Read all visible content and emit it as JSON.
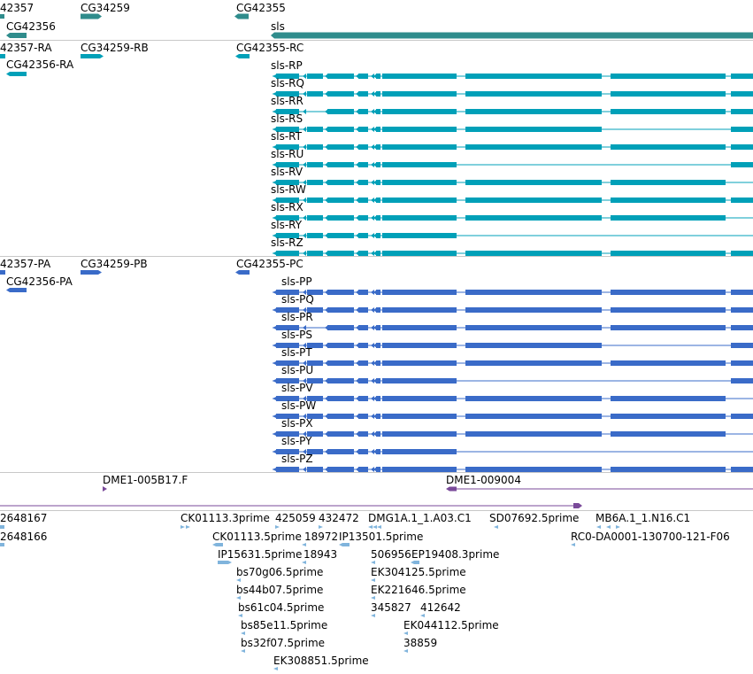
{
  "colors": {
    "gene": "#2f8c8c",
    "mrna": "#00a0b8",
    "cds": "#3a6bc8",
    "cdna": "#7a4a9a",
    "est": "#80b4dc",
    "separator": "#c8c8c8"
  },
  "genes": {
    "row1": [
      "42357",
      "CG34259",
      "CG42355"
    ],
    "row2": [
      "CG42356",
      "sls"
    ]
  },
  "mrna": {
    "row1": [
      "42357-RA",
      "CG34259-RB",
      "CG42355-RC"
    ],
    "row2": [
      "CG42356-RA"
    ],
    "sls": [
      "sls-RP",
      "sls-RQ",
      "sls-RR",
      "sls-RS",
      "sls-RT",
      "sls-RU",
      "sls-RV",
      "sls-RW",
      "sls-RX",
      "sls-RY",
      "sls-RZ"
    ]
  },
  "cds": {
    "row1": [
      "42357-PA",
      "CG34259-PB",
      "CG42355-PC"
    ],
    "row2": [
      "CG42356-PA"
    ],
    "sls": [
      "sls-PP",
      "sls-PQ",
      "sls-PR",
      "sls-PS",
      "sls-PT",
      "sls-PU",
      "sls-PV",
      "sls-PW",
      "sls-PX",
      "sls-PY",
      "sls-PZ"
    ]
  },
  "cdna": [
    "DME1-005B17.F",
    "DME1-009004"
  ],
  "est": {
    "r1": [
      "2648167",
      "CK01113.3prime",
      "425059",
      "432472",
      "DMG1A.1_1.A03.C1",
      "SD07692.5prime",
      "MB6A.1_1.N16.C1"
    ],
    "r2": [
      "2648166",
      "CK01113.5prime",
      "18972",
      "IP13501.5prime",
      "RC0-DA0001-130700-121-F06"
    ],
    "r3": [
      "IP15631.5prime",
      "18943",
      "506956",
      "EP19408.3prime"
    ],
    "r4": [
      "bs70g06.5prime",
      "EK304125.5prime"
    ],
    "r5": [
      "bs44b07.5prime",
      "EK221646.5prime"
    ],
    "r6": [
      "bs61c04.5prime",
      "345827",
      "412642"
    ],
    "r7": [
      "bs85e11.5prime",
      "EK044112.5prime"
    ],
    "r8": [
      "bs32f07.5prime",
      "38859"
    ],
    "r9": [
      "EK308851.5prime"
    ]
  }
}
